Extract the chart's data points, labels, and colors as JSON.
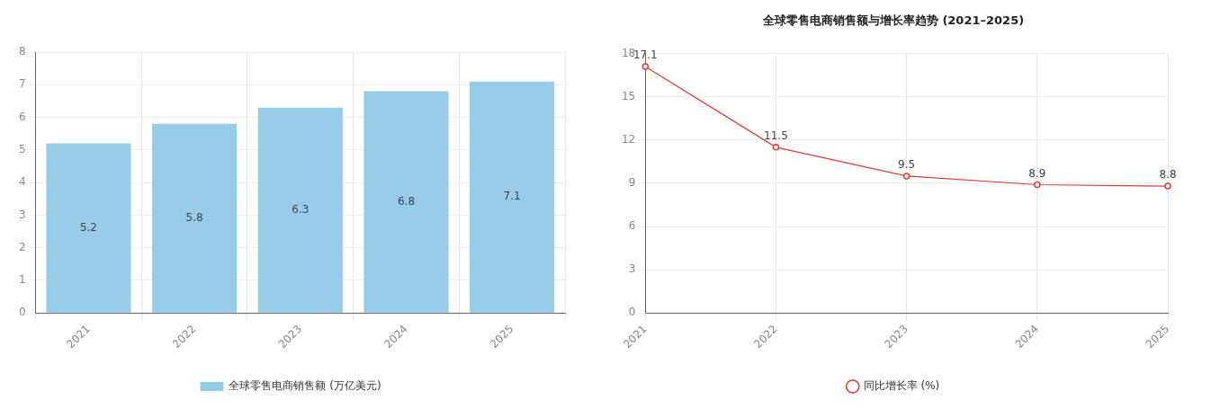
{
  "chart_data": [
    {
      "type": "bar",
      "categories": [
        "2021",
        "2022",
        "2023",
        "2024",
        "2025"
      ],
      "series": [
        {
          "name": "全球零售电商销售额 (万亿美元)",
          "color": "#97cce8",
          "values": [
            5.2,
            5.8,
            6.3,
            6.8,
            7.1
          ]
        }
      ],
      "ylim": [
        0,
        8
      ],
      "yticks": [
        0,
        1,
        2,
        3,
        4,
        5,
        6,
        7,
        8
      ],
      "grid": true,
      "legend": "bottom",
      "data_labels": true
    },
    {
      "type": "line",
      "title": "全球零售电商销售额与增长率趋势 (2021–2025)",
      "categories": [
        "2021",
        "2022",
        "2023",
        "2024",
        "2025"
      ],
      "series": [
        {
          "name": "同比增长率 (%)",
          "color": "#e53935",
          "values": [
            17.1,
            11.5,
            9.5,
            8.9,
            8.8
          ]
        }
      ],
      "ylim": [
        0,
        18
      ],
      "yticks": [
        0,
        3,
        6,
        9,
        12,
        15,
        18
      ],
      "grid": true,
      "legend": "bottom",
      "data_labels": true,
      "marker": "circle"
    }
  ]
}
